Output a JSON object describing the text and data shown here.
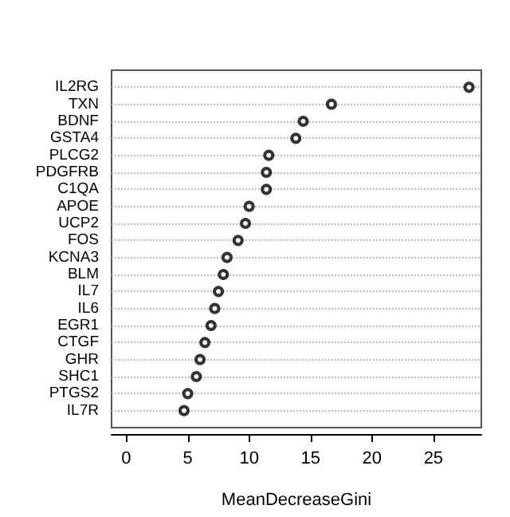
{
  "chart_data": {
    "type": "scatter",
    "orientation": "horizontal",
    "categories": [
      "IL2RG",
      "TXN",
      "BDNF",
      "GSTA4",
      "PLCG2",
      "PDGFRB",
      "C1QA",
      "APOE",
      "UCP2",
      "FOS",
      "KCNA3",
      "BLM",
      "IL7",
      "IL6",
      "EGR1",
      "CTGF",
      "GHR",
      "SHC1",
      "PTGS2",
      "IL7R"
    ],
    "values": [
      27.9,
      16.7,
      14.4,
      13.8,
      11.6,
      11.4,
      11.4,
      10.0,
      9.7,
      9.1,
      8.2,
      7.9,
      7.5,
      7.2,
      6.9,
      6.4,
      6.0,
      5.7,
      5.0,
      4.7
    ],
    "color": "#000000",
    "xlabel": "MeanDecreaseGini",
    "xlim": [
      -1.2,
      28.9
    ],
    "xticks": [
      0,
      5,
      10,
      15,
      20,
      25
    ],
    "grid": "y",
    "marker": "circle"
  }
}
